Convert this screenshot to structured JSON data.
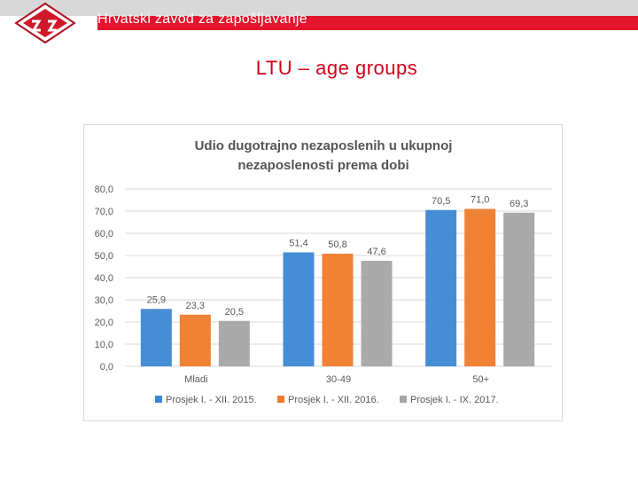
{
  "header": {
    "org_name": "Hrvatski zavod za zapošljavanje"
  },
  "slide": {
    "title": "LTU – age groups"
  },
  "chart_data": {
    "type": "bar",
    "title_line1": "Udio dugotrajno nezaposlenih u ukupnoj",
    "title_line2": "nezaposlenosti prema dobi",
    "categories": [
      "Mladi",
      "30-49",
      "50+"
    ],
    "series": [
      {
        "name": "Prosjek I. - XII. 2015.",
        "values": [
          25.9,
          51.4,
          70.5
        ],
        "labels": [
          "25,9",
          "51,4",
          "70,5"
        ],
        "color": "#3b88d4"
      },
      {
        "name": "Prosjek I. - XII. 2016.",
        "values": [
          23.3,
          50.8,
          71.0
        ],
        "labels": [
          "23,3",
          "50,8",
          "71,0"
        ],
        "color": "#ef7b2a"
      },
      {
        "name": "Prosjek I. - IX. 2017.",
        "values": [
          20.5,
          47.6,
          69.3
        ],
        "labels": [
          "20,5",
          "47,6",
          "69,3"
        ],
        "color": "#a5a5a5"
      }
    ],
    "ylim": [
      0,
      80
    ],
    "yticks": [
      0,
      10,
      20,
      30,
      40,
      50,
      60,
      70,
      80
    ],
    "ytick_labels": [
      "0,0",
      "10,0",
      "20,0",
      "30,0",
      "40,0",
      "50,0",
      "60,0",
      "70,0",
      "80,0"
    ],
    "legend_position": "bottom",
    "grid": true
  }
}
